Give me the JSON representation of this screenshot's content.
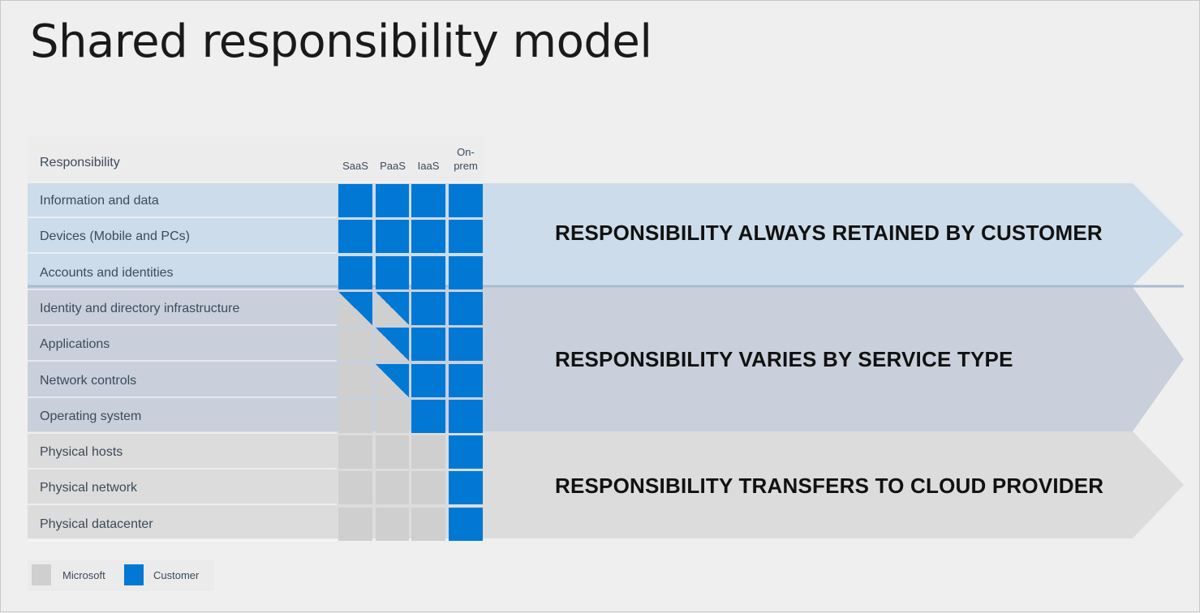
{
  "title": "Shared responsibility model",
  "header": {
    "responsibility_label": "Responsibility",
    "columns": [
      "SaaS",
      "PaaS",
      "IaaS",
      "On-\nprem"
    ]
  },
  "colors": {
    "customer": "#0078d4",
    "microsoft": "#cfcfcf",
    "band_customer": "#cddcea",
    "band_varies": "#c9d0dc",
    "band_provider": "#dcdcdc"
  },
  "rows": [
    {
      "label": "Information and data",
      "cells": [
        "customer",
        "customer",
        "customer",
        "customer"
      ]
    },
    {
      "label": "Devices (Mobile and PCs)",
      "cells": [
        "customer",
        "customer",
        "customer",
        "customer"
      ]
    },
    {
      "label": "Accounts and identities",
      "cells": [
        "customer",
        "customer",
        "customer",
        "customer"
      ]
    },
    {
      "label": "Identity and directory infrastructure",
      "cells": [
        "shared",
        "shared",
        "customer",
        "customer"
      ]
    },
    {
      "label": "Applications",
      "cells": [
        "microsoft",
        "shared",
        "customer",
        "customer"
      ]
    },
    {
      "label": "Network controls",
      "cells": [
        "microsoft",
        "shared",
        "customer",
        "customer"
      ]
    },
    {
      "label": "Operating system",
      "cells": [
        "microsoft",
        "microsoft",
        "customer",
        "customer"
      ]
    },
    {
      "label": "Physical hosts",
      "cells": [
        "microsoft",
        "microsoft",
        "microsoft",
        "customer"
      ]
    },
    {
      "label": "Physical network",
      "cells": [
        "microsoft",
        "microsoft",
        "microsoft",
        "customer"
      ]
    },
    {
      "label": "Physical datacenter",
      "cells": [
        "microsoft",
        "microsoft",
        "microsoft",
        "customer"
      ]
    }
  ],
  "bands": [
    {
      "text": "RESPONSIBILITY ALWAYS RETAINED BY CUSTOMER"
    },
    {
      "text": "RESPONSIBILITY VARIES BY SERVICE TYPE"
    },
    {
      "text": "RESPONSIBILITY TRANSFERS TO CLOUD PROVIDER"
    }
  ],
  "legend": {
    "microsoft": "Microsoft",
    "customer": "Customer"
  }
}
